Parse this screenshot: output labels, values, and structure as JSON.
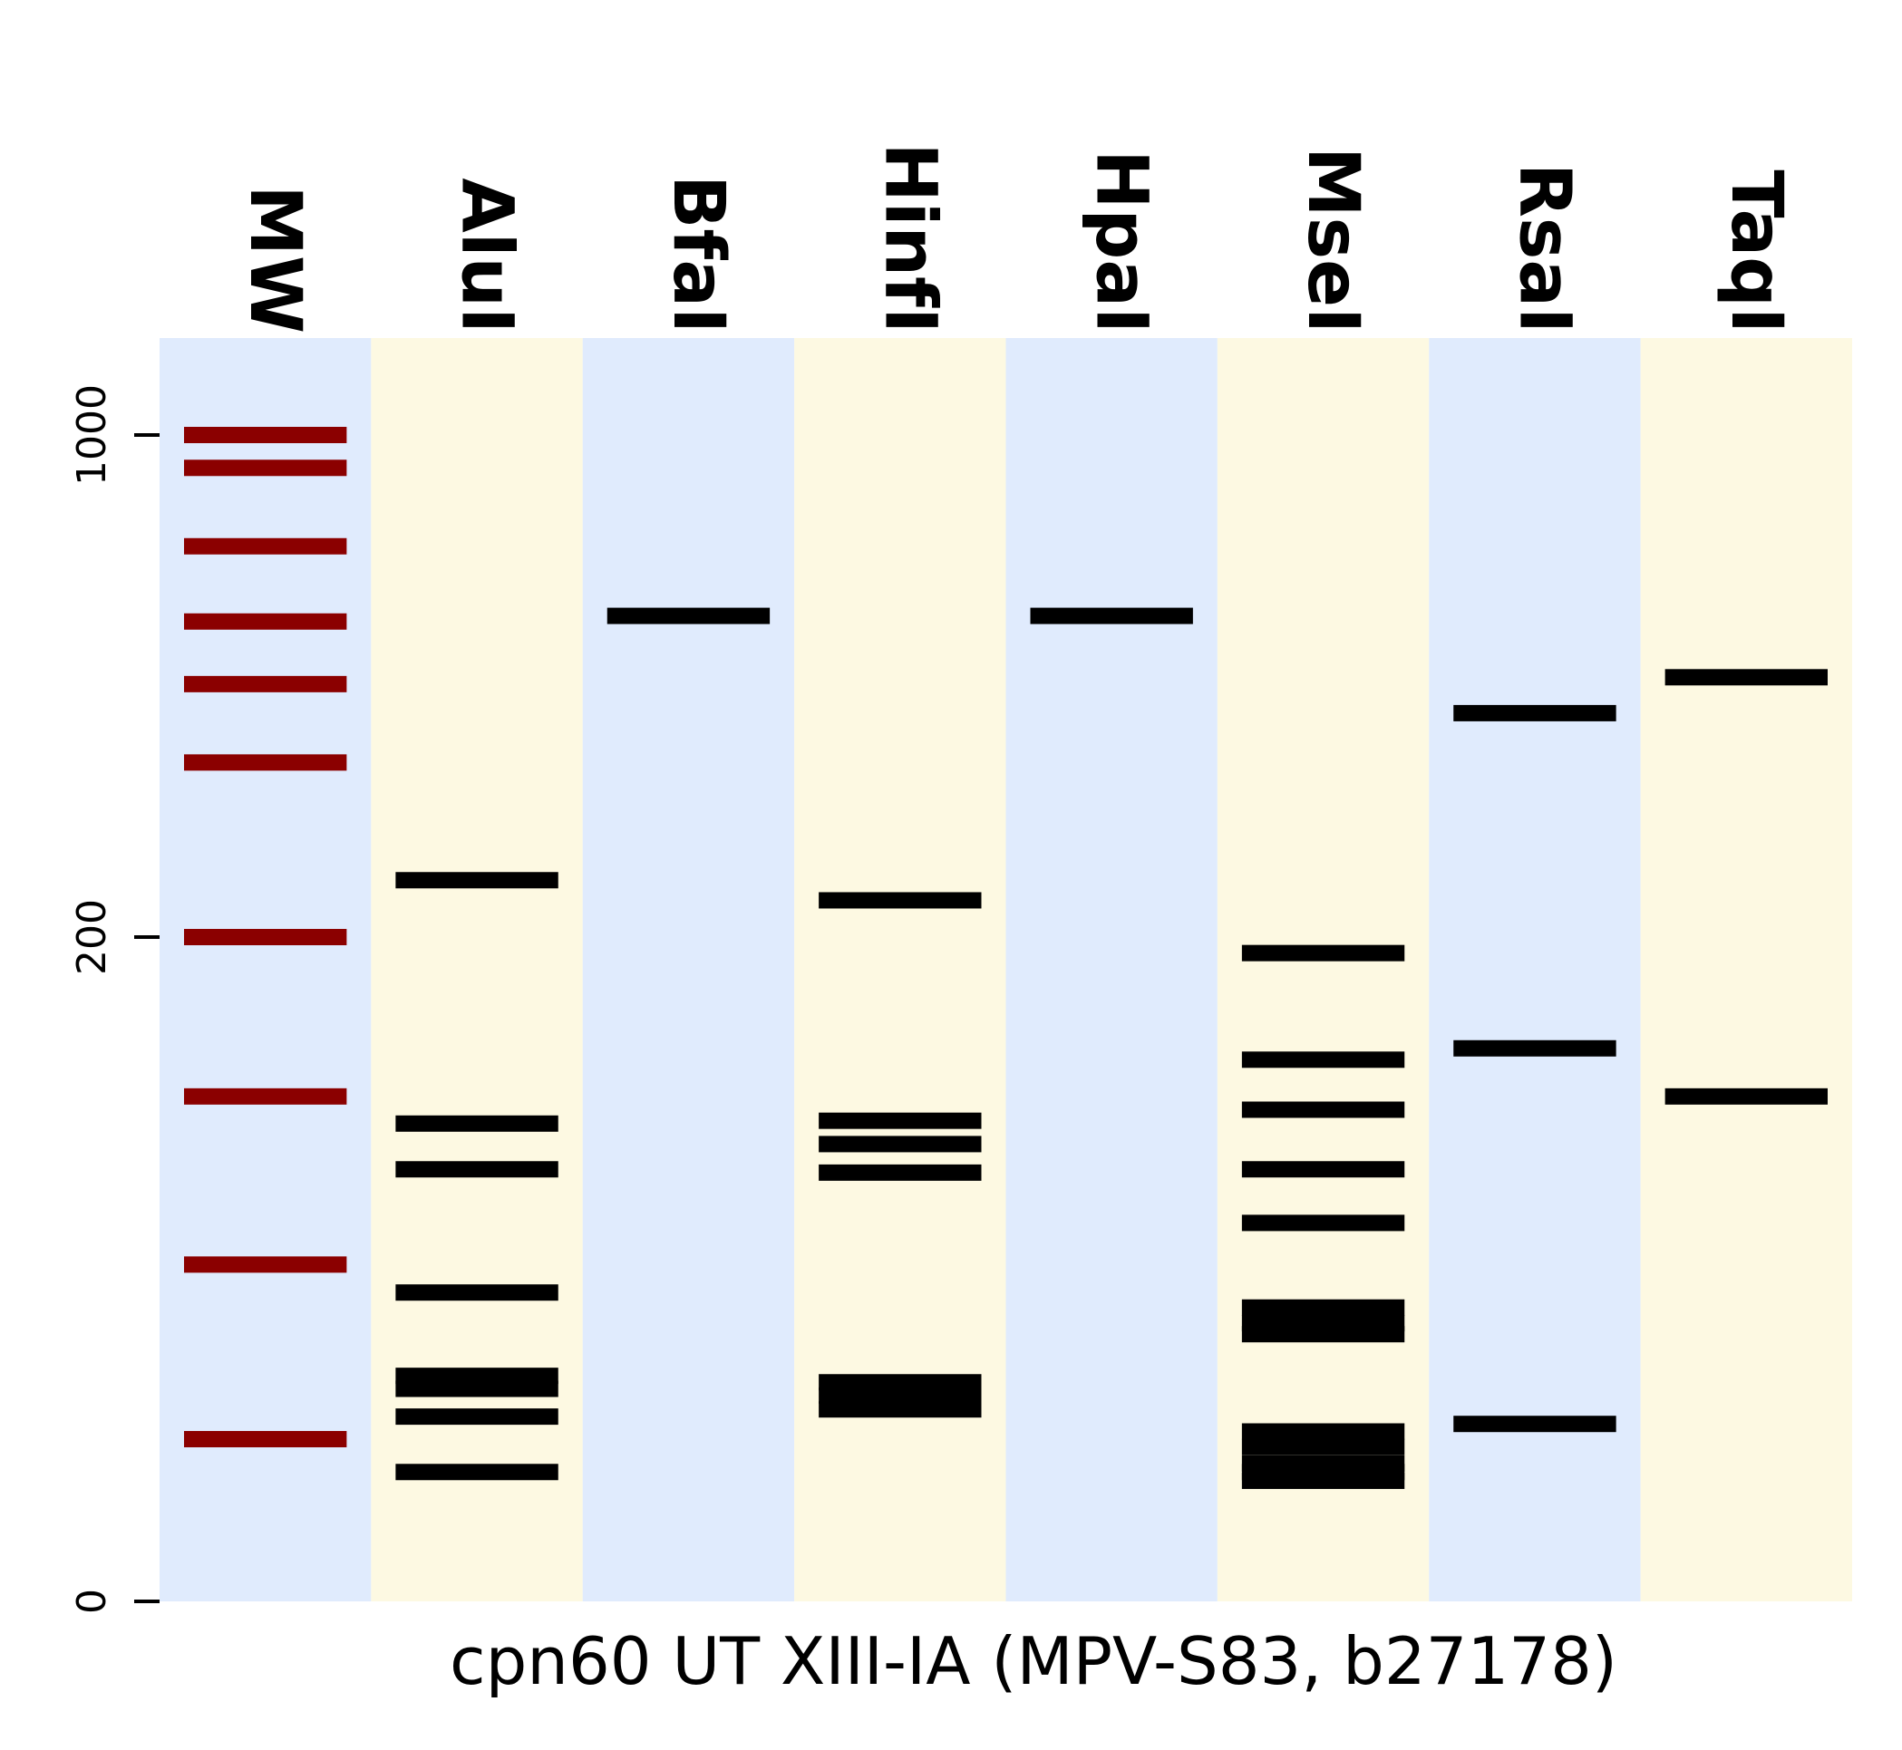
{
  "chart_data": {
    "type": "gel",
    "xlabel": "cpn60 UT XIII-IA (MPV-S83, b27178)",
    "ylabel": "",
    "y_ticks": [
      {
        "label": "0",
        "value": 0
      },
      {
        "label": "200",
        "value": 200
      },
      {
        "label": "1000",
        "value": 1000
      }
    ],
    "lane_colors": [
      "#e0ebfd",
      "#fdf9e2"
    ],
    "ladder_color": "#8b0000",
    "band_color": "#000000",
    "lanes": [
      {
        "name": "MW",
        "ladder": true,
        "bands": [
          1000,
          900,
          700,
          550,
          450,
          350,
          200,
          120,
          70,
          40
        ]
      },
      {
        "name": "AluI",
        "bands": [
          240,
          110,
          95,
          64,
          49,
          47,
          43,
          36
        ]
      },
      {
        "name": "BfaI",
        "bands": [
          560
        ]
      },
      {
        "name": "HinfI",
        "bands": [
          225,
          111,
          103,
          94,
          48,
          46,
          44
        ]
      },
      {
        "name": "HpaI",
        "bands": [
          560
        ]
      },
      {
        "name": "MseI",
        "bands": [
          190,
          135,
          115,
          95,
          80,
          61,
          58,
          56,
          41,
          39,
          37,
          36,
          35
        ]
      },
      {
        "name": "RsaI",
        "bands": [
          410,
          140,
          42
        ]
      },
      {
        "name": "TaqI",
        "bands": [
          460,
          120
        ]
      }
    ]
  }
}
